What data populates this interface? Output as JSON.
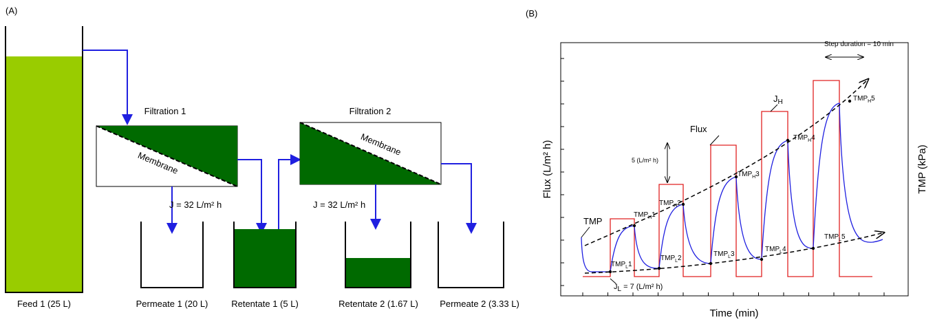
{
  "panel_a": {
    "label": "(A)",
    "feed": "Feed 1 (25 L)",
    "filtration_1": {
      "title": "Filtration 1",
      "membrane": "Membrane",
      "flux": "J = 32 L/m² h"
    },
    "filtration_2": {
      "title": "Filtration 2",
      "membrane": "Membrane",
      "flux": "J = 32 L/m² h"
    },
    "vessels": [
      "Permeate 1 (20 L)",
      "Retentate 1 (5 L)",
      "Retentate 2 (1.67 L)",
      "Permeate 2 (3.33 L)"
    ]
  },
  "panel_b": {
    "label": "(B)",
    "y_label": "Flux (L/m² h)",
    "y2_label": "TMP (kPa)",
    "x_label": "Time (min)",
    "step_duration": "Step duration = 10 min",
    "step_height": "5 (L/m² h)",
    "flux": "Flux",
    "tmp": "TMP",
    "j_high": {
      "base": "J",
      "sub": "H"
    },
    "j_low": {
      "base": "J",
      "sub": "L",
      "suffix": " = 7 (L/m² h)"
    },
    "tmp_high": [
      {
        "base": "TMP",
        "sub": "H",
        "suffix": "1"
      },
      {
        "base": "TMP",
        "sub": "H",
        "suffix": "2"
      },
      {
        "base": "TMP",
        "sub": "H",
        "suffix": "3"
      },
      {
        "base": "TMP",
        "sub": "H",
        "suffix": "4"
      },
      {
        "base": "TMP",
        "sub": "H",
        "suffix": "5"
      }
    ],
    "tmp_low": [
      {
        "base": "TMP",
        "sub": "L",
        "suffix": "1"
      },
      {
        "base": "TMP",
        "sub": "L",
        "suffix": "2"
      },
      {
        "base": "TMP",
        "sub": "L",
        "suffix": "3"
      },
      {
        "base": "TMP",
        "sub": "L",
        "suffix": "4"
      },
      {
        "base": "TMP",
        "sub": "L",
        "suffix": "5"
      }
    ]
  }
}
